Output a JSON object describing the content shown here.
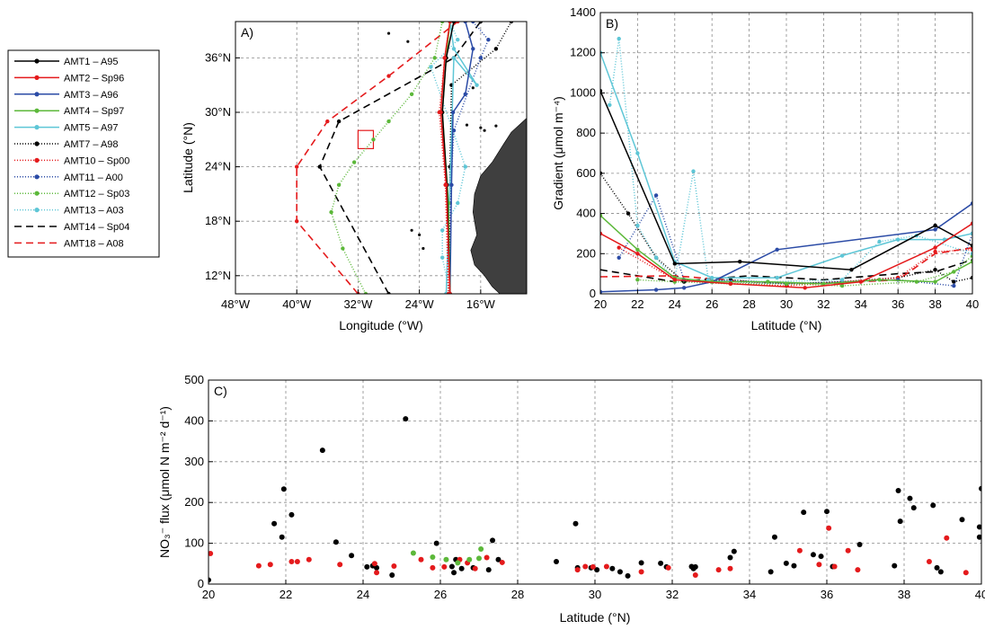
{
  "legend": [
    {
      "label": "AMT1 – A95",
      "color": "#000000",
      "dash": "",
      "marker": true
    },
    {
      "label": "AMT2 – Sp96",
      "color": "#e41a1c",
      "dash": "",
      "marker": true
    },
    {
      "label": "AMT3 – A96",
      "color": "#2b4ba6",
      "dash": "",
      "marker": true
    },
    {
      "label": "AMT4 – Sp97",
      "color": "#5cb83a",
      "dash": "",
      "marker": true
    },
    {
      "label": "AMT5 – A97",
      "color": "#5ec6d6",
      "dash": "",
      "marker": true
    },
    {
      "label": "AMT7 – A98",
      "color": "#000000",
      "dash": "1,2",
      "marker": true
    },
    {
      "label": "AMT10 – Sp00",
      "color": "#e41a1c",
      "dash": "1,2",
      "marker": true
    },
    {
      "label": "AMT11 – A00",
      "color": "#2b4ba6",
      "dash": "1,2",
      "marker": true
    },
    {
      "label": "AMT12 – Sp03",
      "color": "#5cb83a",
      "dash": "1,2",
      "marker": true
    },
    {
      "label": "AMT13 – A03",
      "color": "#5ec6d6",
      "dash": "1,2",
      "marker": true
    },
    {
      "label": "AMT14 – Sp04",
      "color": "#000000",
      "dash": "8,5",
      "marker": false
    },
    {
      "label": "AMT18 – A08",
      "color": "#e41a1c",
      "dash": "8,5",
      "marker": false
    }
  ],
  "chart_data": [
    {
      "panel": "A)",
      "type": "line",
      "xlabel": "Longitude (°W)",
      "ylabel": "Latitude (°N)",
      "xlim": [
        -48,
        -10
      ],
      "ylim": [
        10,
        40
      ],
      "xticks": [
        {
          "v": -48,
          "t": "48°W"
        },
        {
          "v": -40,
          "t": "40°W"
        },
        {
          "v": -32,
          "t": "32°W"
        },
        {
          "v": -24,
          "t": "24°W"
        },
        {
          "v": -16,
          "t": "16°W"
        }
      ],
      "yticks": [
        {
          "v": 12,
          "t": "12°N"
        },
        {
          "v": 18,
          "t": "18°N"
        },
        {
          "v": 24,
          "t": "24°N"
        },
        {
          "v": 30,
          "t": "30°N"
        },
        {
          "v": 36,
          "t": "36°N"
        }
      ],
      "grid": true,
      "box": {
        "lon": [
          -32,
          -30
        ],
        "lat": [
          26,
          28
        ]
      },
      "series": [
        {
          "name": "AMT14 – Sp04",
          "color": "#000000",
          "dash": "8,5",
          "x": [
            -28,
            -37,
            -34.5,
            -19.5,
            -16
          ],
          "y": [
            10,
            24,
            29,
            36,
            40
          ]
        },
        {
          "name": "AMT18 – A08",
          "color": "#e41a1c",
          "dash": "8,5",
          "x": [
            -32,
            -40,
            -40,
            -36,
            -28,
            -19
          ],
          "y": [
            10,
            18,
            24,
            29,
            34,
            40
          ]
        },
        {
          "name": "AMT12 – Sp03",
          "color": "#5cb83a",
          "dash": "1,2",
          "x": [
            -31,
            -34,
            -35.5,
            -34.5,
            -32.5,
            -30,
            -28,
            -25,
            -22,
            -21
          ],
          "y": [
            10,
            15,
            19,
            22,
            24.5,
            27,
            29,
            32,
            36,
            40
          ]
        },
        {
          "name": "AMT13 – A03",
          "color": "#5ec6d6",
          "dash": "1,2",
          "x": [
            -20,
            -21,
            -21,
            -19,
            -18,
            -22.5,
            -19,
            -20
          ],
          "y": [
            10,
            14,
            17,
            20,
            24,
            35,
            38,
            40
          ]
        },
        {
          "name": "AMT7 – A98",
          "color": "#000000",
          "dash": "1,2",
          "x": [
            -20,
            -20,
            -19.8,
            -14,
            -12
          ],
          "y": [
            10,
            24,
            33,
            37,
            40
          ]
        },
        {
          "name": "AMT11 – A00",
          "color": "#2b4ba6",
          "dash": "1,2",
          "x": [
            -20.5,
            -20,
            -19.5,
            -16,
            -15,
            -17
          ],
          "y": [
            10,
            20,
            28,
            36,
            38,
            40
          ]
        },
        {
          "name": "AMT5 – A97",
          "color": "#5ec6d6",
          "dash": "",
          "x": [
            -20.5,
            -20,
            -19.5,
            -16.5,
            -19.5,
            -20
          ],
          "y": [
            10,
            22,
            36,
            33,
            37,
            40
          ]
        },
        {
          "name": "AMT3 – A96",
          "color": "#2b4ba6",
          "dash": "",
          "x": [
            -20,
            -19.8,
            -19.6,
            -18,
            -17,
            -18
          ],
          "y": [
            10,
            22,
            30,
            32,
            37,
            40
          ]
        },
        {
          "name": "AMT4 – Sp97",
          "color": "#5cb83a",
          "dash": "",
          "x": [
            -20,
            -20.2,
            -21,
            -20.5,
            -20
          ],
          "y": [
            10,
            20,
            30,
            36,
            40
          ]
        },
        {
          "name": "AMT1 – A95",
          "color": "#000000",
          "dash": "",
          "x": [
            -20,
            -20.4,
            -21,
            -20.5,
            -19.5
          ],
          "y": [
            10,
            22,
            30,
            36,
            40
          ]
        },
        {
          "name": "AMT2 – Sp96",
          "color": "#e41a1c",
          "dash": "",
          "x": [
            -20,
            -20.5,
            -21.2,
            -20.7,
            -20
          ],
          "y": [
            10,
            22,
            30,
            36,
            40
          ]
        },
        {
          "name": "AMT10 – Sp00",
          "color": "#e41a1c",
          "dash": "1,2",
          "x": [
            -20.2,
            -20.6,
            -21.4,
            -20.7,
            -20
          ],
          "y": [
            10,
            22,
            30,
            36,
            40
          ]
        }
      ]
    },
    {
      "panel": "B)",
      "type": "line",
      "xlabel": "Latitude (°N)",
      "ylabel": "Gradient (μmol m⁻⁴)",
      "xlim": [
        20,
        40
      ],
      "ylim": [
        0,
        1400
      ],
      "xticks": [
        {
          "v": 20,
          "t": "20"
        },
        {
          "v": 22,
          "t": "22"
        },
        {
          "v": 24,
          "t": "24"
        },
        {
          "v": 26,
          "t": "26"
        },
        {
          "v": 28,
          "t": "28"
        },
        {
          "v": 30,
          "t": "30"
        },
        {
          "v": 32,
          "t": "32"
        },
        {
          "v": 34,
          "t": "34"
        },
        {
          "v": 36,
          "t": "36"
        },
        {
          "v": 38,
          "t": "38"
        },
        {
          "v": 40,
          "t": "40"
        }
      ],
      "yticks": [
        {
          "v": 0,
          "t": "0"
        },
        {
          "v": 200,
          "t": "200"
        },
        {
          "v": 400,
          "t": "400"
        },
        {
          "v": 600,
          "t": "600"
        },
        {
          "v": 800,
          "t": "800"
        },
        {
          "v": 1000,
          "t": "1000"
        },
        {
          "v": 1200,
          "t": "1200"
        },
        {
          "v": 1400,
          "t": "1400"
        }
      ],
      "grid": true,
      "series": [
        {
          "name": "AMT14 – Sp04",
          "color": "#000000",
          "dash": "8,5",
          "marker": false,
          "x": [
            20,
            24,
            28,
            32,
            36,
            38,
            40
          ],
          "y": [
            120,
            60,
            90,
            70,
            100,
            110,
            170
          ]
        },
        {
          "name": "AMT18 – A08",
          "color": "#e41a1c",
          "dash": "8,5",
          "marker": false,
          "x": [
            20,
            24,
            28,
            32,
            36,
            38,
            40
          ],
          "y": [
            85,
            90,
            60,
            50,
            70,
            200,
            230
          ]
        },
        {
          "name": "AMT7 – A98",
          "color": "#000000",
          "dash": "1,2",
          "marker": true,
          "x": [
            20,
            21.5,
            23,
            24.5,
            27,
            30,
            33,
            36,
            38,
            39,
            40
          ],
          "y": [
            600,
            400,
            180,
            60,
            70,
            50,
            60,
            80,
            120,
            60,
            80
          ]
        },
        {
          "name": "AMT10 – Sp00",
          "color": "#e41a1c",
          "dash": "1,2",
          "marker": true,
          "x": [
            21,
            24,
            27,
            30,
            33,
            36,
            38,
            40
          ],
          "y": [
            230,
            70,
            50,
            40,
            60,
            80,
            210,
            220
          ]
        },
        {
          "name": "AMT11 – A00",
          "color": "#2b4ba6",
          "dash": "1,2",
          "marker": true,
          "x": [
            21,
            23,
            24.5,
            27,
            30,
            33,
            36,
            39,
            40
          ],
          "y": [
            180,
            490,
            70,
            60,
            50,
            60,
            70,
            40,
            300
          ]
        },
        {
          "name": "AMT12 – Sp03",
          "color": "#5cb83a",
          "dash": "1,2",
          "marker": true,
          "x": [
            22,
            24,
            27,
            30,
            33,
            37,
            39,
            40
          ],
          "y": [
            70,
            60,
            50,
            50,
            40,
            60,
            110,
            190
          ]
        },
        {
          "name": "AMT13 – A03",
          "color": "#5ec6d6",
          "dash": "1,2",
          "marker": true,
          "x": [
            20.5,
            21,
            22,
            23,
            24,
            25,
            25.8,
            29,
            33,
            35,
            37,
            40
          ],
          "y": [
            940,
            1270,
            340,
            180,
            70,
            610,
            70,
            60,
            70,
            260,
            290,
            200
          ]
        },
        {
          "name": "AMT5 – A97",
          "color": "#5ec6d6",
          "dash": "",
          "marker": true,
          "x": [
            20,
            22,
            24,
            26,
            29.5,
            33,
            36,
            38.5,
            40
          ],
          "y": [
            1200,
            700,
            160,
            80,
            80,
            190,
            270,
            270,
            300
          ]
        },
        {
          "name": "AMT3 – A96",
          "color": "#2b4ba6",
          "dash": "",
          "marker": true,
          "x": [
            20,
            23,
            24.5,
            26,
            29.5,
            38,
            40
          ],
          "y": [
            10,
            20,
            30,
            60,
            220,
            320,
            450
          ]
        },
        {
          "name": "AMT4 – Sp97",
          "color": "#5cb83a",
          "dash": "",
          "marker": true,
          "x": [
            20,
            22,
            24,
            26,
            29,
            32,
            35,
            38,
            40
          ],
          "y": [
            390,
            220,
            80,
            60,
            60,
            50,
            70,
            60,
            160
          ]
        },
        {
          "name": "AMT1 – A95",
          "color": "#000000",
          "dash": "",
          "marker": true,
          "x": [
            20,
            24,
            27.5,
            33.5,
            38,
            40
          ],
          "y": [
            1010,
            150,
            160,
            120,
            340,
            240
          ]
        },
        {
          "name": "AMT2 – Sp96",
          "color": "#e41a1c",
          "dash": "",
          "marker": true,
          "x": [
            20,
            22,
            24,
            27,
            31,
            34,
            38,
            40
          ],
          "y": [
            300,
            200,
            70,
            50,
            30,
            60,
            230,
            350
          ]
        }
      ]
    },
    {
      "panel": "C)",
      "type": "scatter",
      "xlabel": "Latitude (°N)",
      "ylabel": "NO₃⁻ flux (μmol N m⁻² d⁻¹)",
      "xlim": [
        20,
        40
      ],
      "ylim": [
        0,
        500
      ],
      "xticks": [
        {
          "v": 20,
          "t": "20"
        },
        {
          "v": 22,
          "t": "22"
        },
        {
          "v": 24,
          "t": "24"
        },
        {
          "v": 26,
          "t": "26"
        },
        {
          "v": 28,
          "t": "28"
        },
        {
          "v": 30,
          "t": "30"
        },
        {
          "v": 32,
          "t": "32"
        },
        {
          "v": 34,
          "t": "34"
        },
        {
          "v": 36,
          "t": "36"
        },
        {
          "v": 38,
          "t": "38"
        },
        {
          "v": 40,
          "t": "40"
        }
      ],
      "yticks": [
        {
          "v": 0,
          "t": "0"
        },
        {
          "v": 100,
          "t": "100"
        },
        {
          "v": 200,
          "t": "200"
        },
        {
          "v": 300,
          "t": "300"
        },
        {
          "v": 400,
          "t": "400"
        },
        {
          "v": 500,
          "t": "500"
        }
      ],
      "grid": true,
      "series": [
        {
          "color": "#000000",
          "x": [
            20,
            21.7,
            21.9,
            21.95,
            22.15,
            22.95,
            23.3,
            23.7,
            24.1,
            24.25,
            24.35,
            24.75,
            25.1,
            25.9,
            26.3,
            26.35,
            26.4,
            26.55,
            26.85,
            27.25,
            27.35,
            27.5,
            29,
            29.55,
            29.5,
            29.9,
            30.05,
            30.45,
            30.65,
            30.85,
            31.2,
            31.7,
            31.85,
            32.5,
            32.55,
            32.6,
            33.5,
            33.6,
            34.55,
            34.65,
            34.95,
            35.15,
            35.4,
            35.65,
            35.85,
            36,
            36.15,
            36.85,
            37.75,
            37.85,
            37.9,
            38.15,
            38.25,
            38.75,
            38.85,
            38.95,
            39.5,
            39.95,
            40,
            39.95
          ],
          "y": [
            10,
            148,
            115,
            233,
            170,
            328,
            103,
            70,
            42,
            45,
            40,
            22,
            405,
            100,
            43,
            28,
            60,
            38,
            40,
            35,
            107,
            60,
            55,
            40,
            148,
            40,
            35,
            38,
            30,
            20,
            52,
            51,
            42,
            43,
            38,
            42,
            65,
            80,
            30,
            115,
            51,
            45,
            176,
            72,
            68,
            178,
            43,
            97,
            45,
            229,
            154,
            210,
            187,
            193,
            40,
            30,
            158,
            115,
            234,
            140
          ]
        },
        {
          "color": "#e41a1c",
          "x": [
            20.05,
            21.3,
            21.6,
            22.15,
            22.3,
            22.6,
            23.4,
            24.3,
            24.35,
            24.8,
            25.5,
            25.8,
            26.1,
            26.5,
            26.7,
            26.9,
            27.2,
            27.6,
            29.55,
            29.75,
            29.95,
            30.3,
            31.2,
            31.9,
            32.6,
            33.2,
            33.5,
            35.3,
            35.8,
            36.05,
            36.2,
            36.55,
            36.8,
            38.65,
            39.1,
            39.6
          ],
          "y": [
            75,
            45,
            48,
            55,
            55,
            60,
            48,
            50,
            28,
            44,
            60,
            40,
            42,
            60,
            52,
            38,
            65,
            53,
            35,
            43,
            42,
            43,
            30,
            40,
            22,
            35,
            38,
            82,
            48,
            137,
            43,
            82,
            35,
            55,
            113,
            28
          ]
        },
        {
          "color": "#5cb83a",
          "x": [
            25.3,
            25.8,
            26.15,
            26.45,
            26.75,
            27.0,
            27.05
          ],
          "y": [
            76,
            66,
            60,
            52,
            60,
            63,
            86
          ]
        }
      ]
    }
  ]
}
